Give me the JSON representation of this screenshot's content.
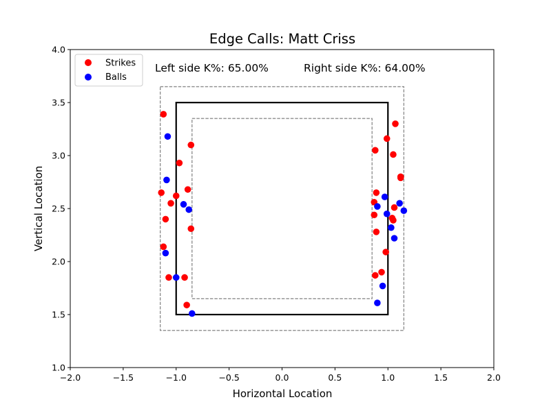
{
  "chart_data": {
    "type": "scatter",
    "title": "Edge Calls: Matt Criss",
    "xlabel": "Horizontal Location",
    "ylabel": "Vertical Location",
    "xlim": [
      -2.0,
      2.0
    ],
    "ylim": [
      1.0,
      4.0
    ],
    "xticks": [
      -2.0,
      -1.5,
      -1.0,
      -0.5,
      0.0,
      0.5,
      1.0,
      1.5,
      2.0
    ],
    "yticks": [
      1.0,
      1.5,
      2.0,
      2.5,
      3.0,
      3.5,
      4.0
    ],
    "xtick_labels": [
      "−2.0",
      "−1.5",
      "−1.0",
      "−0.5",
      "0.0",
      "0.5",
      "1.0",
      "1.5",
      "2.0"
    ],
    "ytick_labels": [
      "1.0",
      "1.5",
      "2.0",
      "2.5",
      "3.0",
      "3.5",
      "4.0"
    ],
    "annotations": {
      "left": "Left side K%: 65.00%",
      "right": "Right side K%: 64.00%"
    },
    "legend": {
      "placement": "top-left",
      "entries": [
        "Strikes",
        "Balls"
      ]
    },
    "zones": {
      "strike_zone": {
        "x": [
          -1.0,
          1.0
        ],
        "y": [
          1.5,
          3.5
        ]
      },
      "outer_zone": {
        "x": [
          -1.15,
          1.15
        ],
        "y": [
          1.35,
          3.65
        ]
      },
      "inner_zone": {
        "x": [
          -0.85,
          0.85
        ],
        "y": [
          1.65,
          3.35
        ]
      }
    },
    "series": [
      {
        "name": "Strikes",
        "color": "#ff0000",
        "points": [
          [
            -1.12,
            3.39
          ],
          [
            -0.86,
            3.1
          ],
          [
            -0.97,
            2.93
          ],
          [
            -1.14,
            2.65
          ],
          [
            -0.89,
            2.68
          ],
          [
            -1.0,
            2.62
          ],
          [
            -1.05,
            2.55
          ],
          [
            -1.1,
            2.4
          ],
          [
            -0.86,
            2.31
          ],
          [
            -1.12,
            2.14
          ],
          [
            -1.07,
            1.85
          ],
          [
            -0.92,
            1.85
          ],
          [
            -0.9,
            1.59
          ],
          [
            1.07,
            3.3
          ],
          [
            0.99,
            3.16
          ],
          [
            0.88,
            3.05
          ],
          [
            1.05,
            3.01
          ],
          [
            1.12,
            2.8
          ],
          [
            1.12,
            2.79
          ],
          [
            0.89,
            2.65
          ],
          [
            0.87,
            2.56
          ],
          [
            1.06,
            2.51
          ],
          [
            0.87,
            2.44
          ],
          [
            1.04,
            2.41
          ],
          [
            1.05,
            2.39
          ],
          [
            0.89,
            2.28
          ],
          [
            0.98,
            2.09
          ],
          [
            0.94,
            1.9
          ],
          [
            0.88,
            1.87
          ]
        ]
      },
      {
        "name": "Balls",
        "color": "#0000ff",
        "points": [
          [
            -1.08,
            3.18
          ],
          [
            -1.09,
            2.77
          ],
          [
            -0.93,
            2.54
          ],
          [
            -0.88,
            2.49
          ],
          [
            -1.1,
            2.08
          ],
          [
            -1.0,
            1.85
          ],
          [
            -0.85,
            1.51
          ],
          [
            0.97,
            2.61
          ],
          [
            1.11,
            2.55
          ],
          [
            0.9,
            2.52
          ],
          [
            1.15,
            2.48
          ],
          [
            0.99,
            2.45
          ],
          [
            1.03,
            2.32
          ],
          [
            1.06,
            2.22
          ],
          [
            0.95,
            1.77
          ],
          [
            0.9,
            1.61
          ]
        ]
      }
    ]
  }
}
